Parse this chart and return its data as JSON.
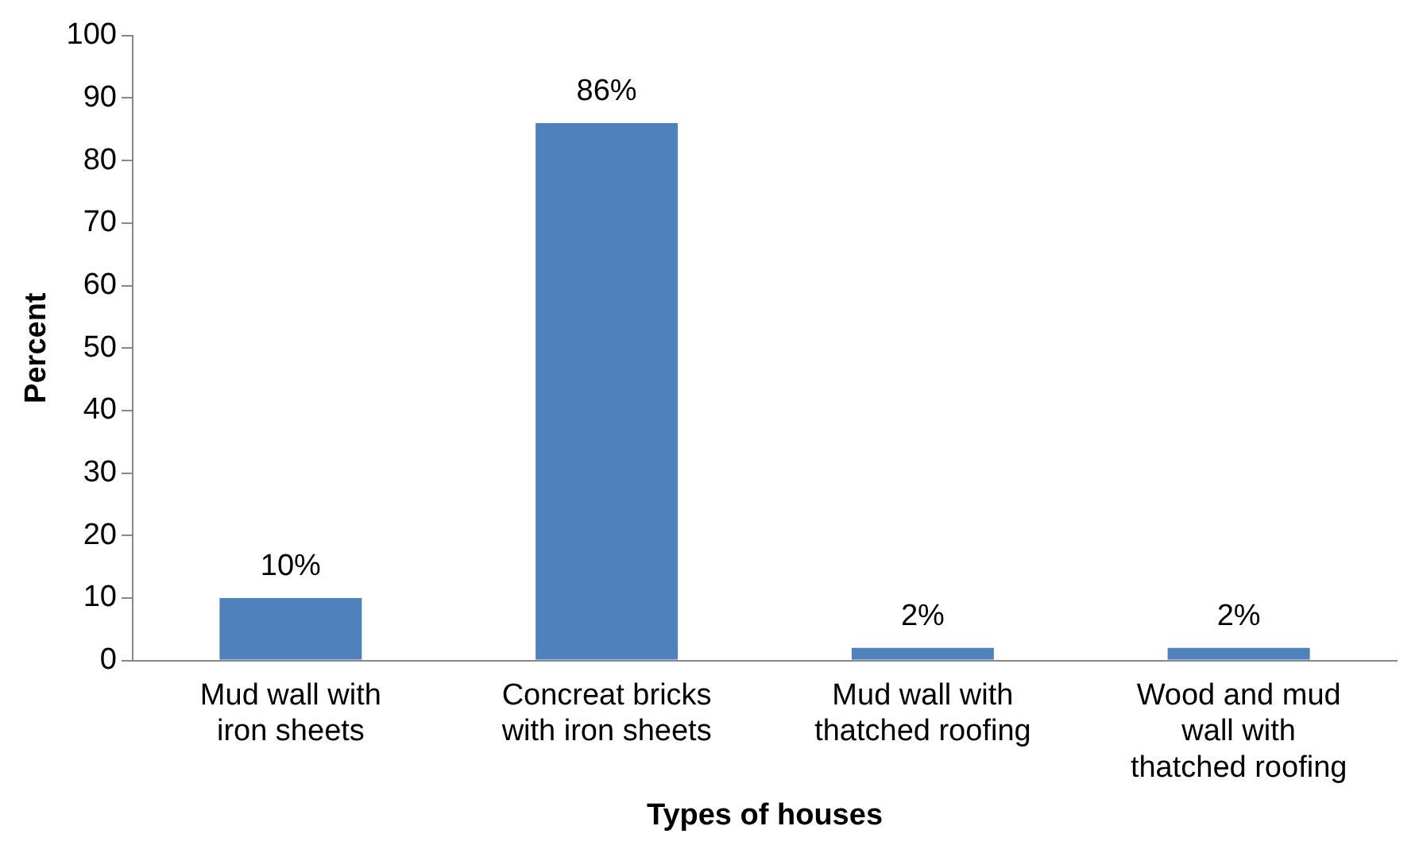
{
  "chart_data": {
    "type": "bar",
    "xlabel": "Types of houses",
    "ylabel": "Percent",
    "categories": [
      "Mud wall with iron sheets",
      "Concreat bricks with iron sheets",
      "Mud wall with thatched roofing",
      "Wood and mud wall with thatched roofing"
    ],
    "values": [
      10,
      86,
      2,
      2
    ],
    "color": "#4f81bd",
    "value_labels": [
      "10%",
      "86%",
      "2%",
      "2%"
    ],
    "ylim": [
      0,
      100
    ],
    "yticks": [
      0,
      10,
      20,
      30,
      40,
      50,
      60,
      70,
      80,
      90,
      100
    ],
    "grid": false,
    "legend": false
  }
}
